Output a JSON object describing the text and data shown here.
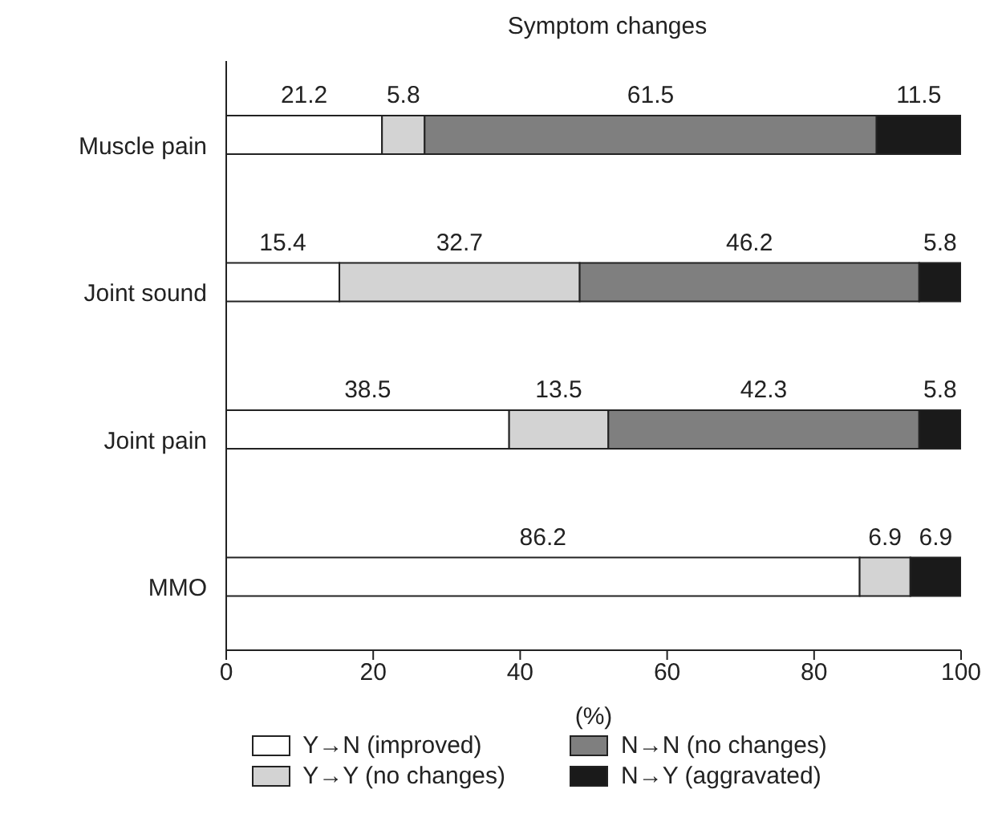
{
  "chart_data": {
    "type": "bar",
    "orientation": "horizontal",
    "stacked": true,
    "title": "Symptom changes",
    "xlabel": "(%)",
    "categories": [
      "Muscle pain",
      "Joint sound",
      "Joint pain",
      "MMO"
    ],
    "series": [
      {
        "name": "Y→N (improved)",
        "color": "#ffffff",
        "values": [
          21.2,
          15.4,
          38.5,
          86.2
        ]
      },
      {
        "name": "Y→Y (no changes)",
        "color": "#d3d3d3",
        "values": [
          5.8,
          32.7,
          13.5,
          6.9
        ]
      },
      {
        "name": "N→N (no changes)",
        "color": "#7f7f7f",
        "values": [
          61.5,
          46.2,
          42.3,
          null
        ]
      },
      {
        "name": "N→Y (aggravated)",
        "color": "#1a1a1a",
        "values": [
          11.5,
          5.8,
          5.8,
          6.9
        ]
      }
    ],
    "xlim": [
      0,
      100
    ],
    "xticks": [
      0,
      20,
      40,
      60,
      80,
      100
    ],
    "data_labels": true,
    "grid": false,
    "legend": "bottom"
  }
}
